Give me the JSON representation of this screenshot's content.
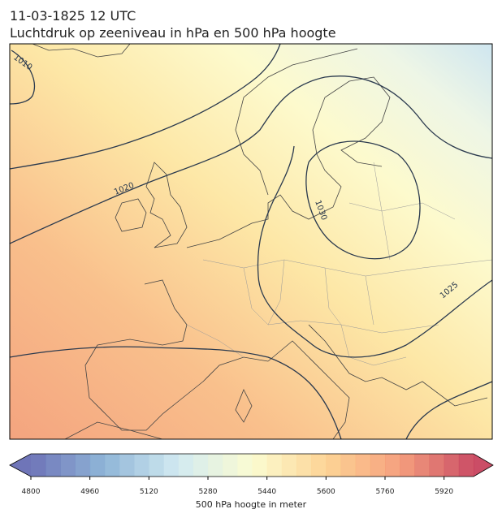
{
  "title": "11-03-1825 12 UTC",
  "subtitle": "Luchtdruk op zeeniveau in hPa en 500 hPa hoogte",
  "contour_labels": [
    "1010",
    "1020",
    "1030",
    "1025"
  ],
  "colorbar": {
    "min": 4800,
    "max": 6000,
    "step": 40,
    "ticks": [
      4800,
      4960,
      5120,
      5280,
      5440,
      5600,
      5760,
      5920
    ],
    "colors": [
      "#5f66b0",
      "#84aed3",
      "#cde8f0",
      "#fbfbcc",
      "#fdd08a",
      "#f49570",
      "#c53a55"
    ],
    "label": "500 hPa hoogte in meter"
  }
}
